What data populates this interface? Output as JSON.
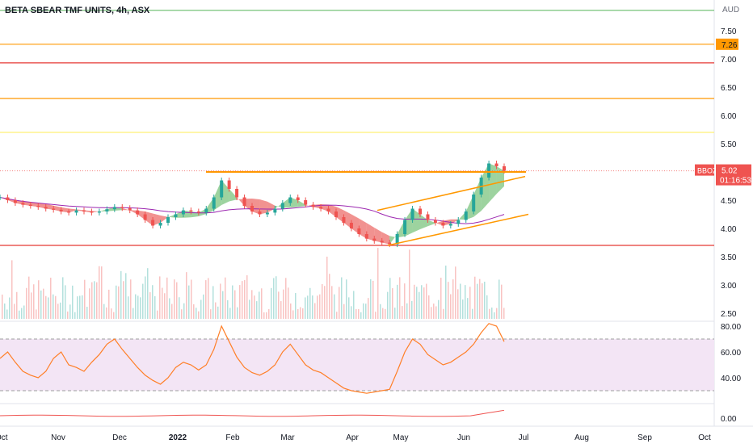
{
  "chart_title": "BETA SBEAR TMF UNITS, 4h, ASX",
  "currency": "AUD",
  "symbol": "BBOZ",
  "last_price": "5.02",
  "countdown": "01:16:53",
  "marked_level": "7.26",
  "colors": {
    "up": "#26a69a",
    "down": "#ef5350",
    "ribbon_up": "#4caf50",
    "ribbon_down": "#e53935",
    "level_green": "#66bb6a",
    "level_orange": "#ff9800",
    "level_red": "#e53935",
    "rsi_line": "#ff7f27",
    "rsi_band": "#f3e5f5",
    "bottom_line": "#ef5350"
  },
  "chart_data": [
    {
      "type": "line",
      "panel": "price",
      "y_ticks": [
        "7.50",
        "7.00",
        "6.50",
        "6.00",
        "5.50",
        "5.00",
        "4.50",
        "4.00",
        "3.50",
        "3.00",
        "2.50"
      ],
      "ylim": [
        2.4,
        8.0
      ],
      "x_ticks": [
        "Oct",
        "Nov",
        "Dec",
        "2022",
        "Feb",
        "Mar",
        "Apr",
        "May",
        "Jun",
        "Jul",
        "Aug",
        "Sep",
        "Oct"
      ],
      "horizontal_levels": [
        {
          "value": 7.86,
          "color": "green"
        },
        {
          "value": 7.26,
          "color": "orange"
        },
        {
          "value": 6.93,
          "color": "red"
        },
        {
          "value": 6.3,
          "color": "orange"
        },
        {
          "value": 5.7,
          "color": "yellow"
        },
        {
          "value": 3.7,
          "color": "red"
        }
      ],
      "series": [
        {
          "values": [
            4.55,
            4.5,
            4.45,
            4.42,
            4.4,
            4.38,
            4.35,
            4.33,
            4.3,
            4.28,
            4.32,
            4.3,
            4.28,
            4.3,
            4.34,
            4.38,
            4.36,
            4.32,
            4.25,
            4.15,
            4.05,
            4.1,
            4.2,
            4.25,
            4.32,
            4.3,
            4.28,
            4.35,
            4.55,
            4.85,
            4.7,
            4.55,
            4.4,
            4.3,
            4.25,
            4.28,
            4.35,
            4.45,
            4.55,
            4.5,
            4.42,
            4.38,
            4.35,
            4.3,
            4.2,
            4.1,
            4.0,
            3.9,
            3.82,
            3.78,
            3.75,
            3.72,
            3.9,
            4.15,
            4.35,
            4.25,
            4.15,
            4.1,
            4.05,
            4.08,
            4.15,
            4.3,
            4.6,
            4.9,
            5.15,
            5.1,
            5.02
          ]
        }
      ]
    },
    {
      "type": "bar",
      "panel": "volume",
      "note": "volume histogram, unlabeled"
    },
    {
      "type": "line",
      "panel": "rsi",
      "y_ticks": [
        "80.00",
        "60.00",
        "40.00"
      ],
      "ylim": [
        25,
        84
      ],
      "band": [
        30,
        70
      ],
      "series": [
        {
          "values": [
            55,
            60,
            52,
            45,
            42,
            40,
            45,
            55,
            60,
            50,
            48,
            45,
            52,
            58,
            66,
            70,
            62,
            55,
            48,
            42,
            38,
            35,
            40,
            48,
            52,
            50,
            46,
            50,
            62,
            80,
            68,
            56,
            48,
            44,
            42,
            45,
            50,
            60,
            66,
            58,
            50,
            46,
            44,
            40,
            36,
            32,
            30,
            29,
            28,
            29,
            30,
            31,
            45,
            60,
            70,
            66,
            58,
            54,
            50,
            52,
            56,
            60,
            66,
            75,
            82,
            80,
            68
          ]
        }
      ]
    },
    {
      "type": "line",
      "panel": "bottom-indicator",
      "y_ticks": [
        "0.00"
      ],
      "ylim": [
        -0.2,
        0.6
      ]
    }
  ]
}
